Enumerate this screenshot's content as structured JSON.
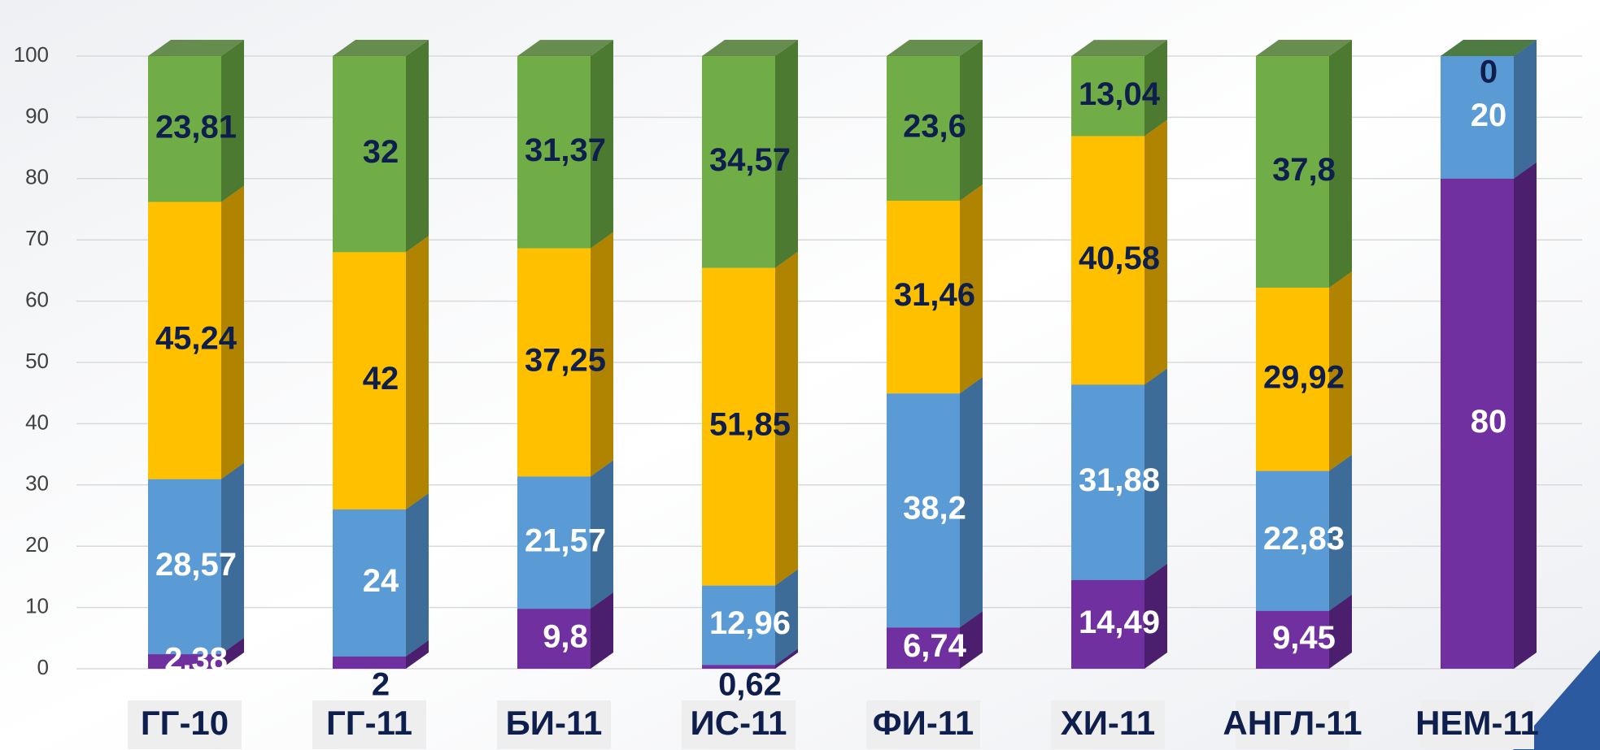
{
  "chart_data": {
    "type": "bar",
    "stacked": true,
    "categories": [
      "ГГ-10",
      "ГГ-11",
      "БИ-11",
      "ИС-11",
      "ФИ-11",
      "ХИ-11",
      "АНГЛ-11",
      "НЕМ-11"
    ],
    "series": [
      {
        "color": "#7030a0",
        "side_color": "#4b1f6e",
        "label_color": "#ffffff",
        "values": [
          2.38,
          2,
          9.8,
          0.62,
          6.74,
          14.49,
          9.45,
          80
        ],
        "value_labels": [
          "2,38",
          "2",
          "9,8",
          "0,62",
          "6,74",
          "14,49",
          "9,45",
          "80"
        ]
      },
      {
        "color": "#5b9bd5",
        "side_color": "#3d6c98",
        "label_color": "#ffffff",
        "values": [
          28.57,
          24,
          21.57,
          12.96,
          38.2,
          31.88,
          22.83,
          20
        ],
        "value_labels": [
          "28,57",
          "24",
          "21,57",
          "12,96",
          "38,2",
          "31,88",
          "22,83",
          "20"
        ]
      },
      {
        "color": "#ffc000",
        "side_color": "#b08400",
        "label_color": "#0f1f4d",
        "values": [
          45.24,
          42,
          37.25,
          51.85,
          31.46,
          40.58,
          29.92,
          null
        ],
        "value_labels": [
          "45,24",
          "42",
          "37,25",
          "51,85",
          "31,46",
          "40,58",
          "29,92",
          null
        ]
      },
      {
        "color": "#70ad47",
        "side_color": "#4c7a30",
        "label_color": "#0f1f4d",
        "values": [
          23.81,
          32,
          31.37,
          34.57,
          23.6,
          13.04,
          37.8,
          0
        ],
        "value_labels": [
          "23,81",
          "32",
          "31,37",
          "34,57",
          "23,6",
          "13,04",
          "37,8",
          "0"
        ]
      }
    ],
    "ylim": [
      0,
      100
    ],
    "yticks": [
      0,
      10,
      20,
      30,
      40,
      50,
      60,
      70,
      80,
      90,
      100
    ],
    "grid": true
  }
}
